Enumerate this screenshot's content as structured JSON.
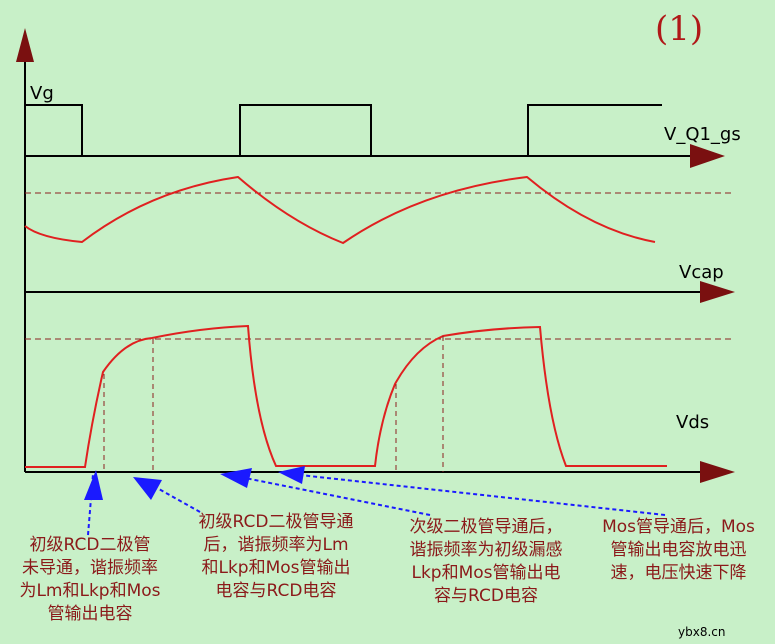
{
  "figure_number": "(1)",
  "signals": {
    "vg": "Vg",
    "vgs": "V_Q1_gs",
    "vcap": "Vcap",
    "vds": "Vds"
  },
  "annotations": [
    {
      "id": "a1",
      "lines": [
        "初级RCD二极管",
        "未导通，谐振频率",
        "为Lm和Lkp和Mos",
        "管输出电容"
      ]
    },
    {
      "id": "a2",
      "lines": [
        "初级RCD二极管导通",
        "后，谐振频率为Lm",
        "和Lkp和Mos管输出",
        "电容与RCD电容"
      ]
    },
    {
      "id": "a3",
      "lines": [
        "次级二极管导通后，",
        "谐振频率为初级漏感",
        "Lkp和Mos管输出电",
        "容与RCD电容"
      ]
    },
    {
      "id": "a4",
      "lines": [
        "Mos管导通后，Mos",
        "管输出电容放电迅",
        "速，电压快速下降"
      ]
    }
  ],
  "watermark": "ybx8.cn",
  "colors": {
    "background": "#c8f0c8",
    "axis": "#000000",
    "arrowhead": "#7a1010",
    "waveform": "#e02020",
    "dashed": "#8b2020",
    "pointer": "#1a1aff",
    "caption": "#8b1a1a"
  }
}
